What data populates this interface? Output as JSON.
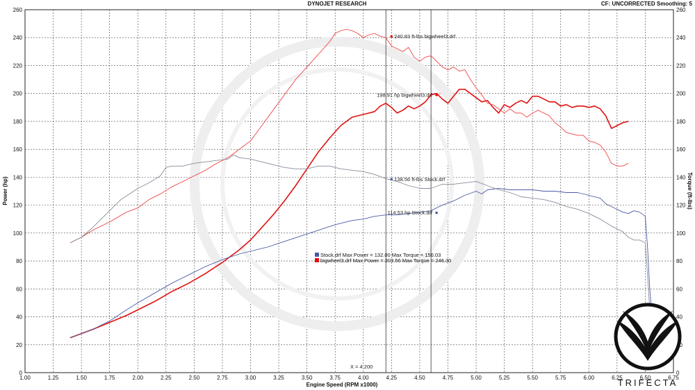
{
  "header": {
    "center": "DYNOJET RESEARCH",
    "right": "CF: UNCORRECTED  Smoothing: 5"
  },
  "brand": {
    "wordmark": "TRIFECTA"
  },
  "chart_data": {
    "type": "line",
    "xlabel": "Engine Speed (RPM x1000)",
    "ylabel_left": "Power (hp)",
    "ylabel_right": "Torque (ft-lbs)",
    "xlim": [
      1.0,
      6.75
    ],
    "ylim": [
      0,
      260
    ],
    "x_ticks": [
      "1.00",
      "1.25",
      "1.50",
      "1.75",
      "2.00",
      "2.25",
      "2.50",
      "2.75",
      "3.00",
      "3.25",
      "3.50",
      "3.75",
      "4.00",
      "4.25",
      "4.50",
      "4.75",
      "5.00",
      "5.25",
      "5.50",
      "5.75",
      "6.00",
      "6.25",
      "6.50",
      "6.75"
    ],
    "y_ticks": [
      "0",
      "20",
      "40",
      "60",
      "80",
      "100",
      "120",
      "140",
      "160",
      "180",
      "200",
      "220",
      "240",
      "260"
    ],
    "grid": true,
    "cursor": {
      "x": 4.2,
      "label": "X = 4.200"
    },
    "cursor2": {
      "x": 4.6
    },
    "series": [
      {
        "name": "bigwheel3.drf",
        "kind": "power",
        "color": "#e01010",
        "width": 1.6,
        "points": [
          [
            1.4,
            25
          ],
          [
            1.5,
            28
          ],
          [
            1.6,
            31
          ],
          [
            1.75,
            36
          ],
          [
            1.9,
            41
          ],
          [
            2.0,
            45
          ],
          [
            2.15,
            51
          ],
          [
            2.3,
            58
          ],
          [
            2.45,
            64
          ],
          [
            2.6,
            71
          ],
          [
            2.75,
            79
          ],
          [
            2.9,
            88
          ],
          [
            3.0,
            95
          ],
          [
            3.1,
            104
          ],
          [
            3.2,
            113
          ],
          [
            3.3,
            123
          ],
          [
            3.4,
            134
          ],
          [
            3.5,
            146
          ],
          [
            3.6,
            158
          ],
          [
            3.7,
            168
          ],
          [
            3.8,
            177
          ],
          [
            3.9,
            183
          ],
          [
            4.0,
            185
          ],
          [
            4.1,
            187
          ],
          [
            4.15,
            191
          ],
          [
            4.2,
            193
          ],
          [
            4.25,
            190
          ],
          [
            4.3,
            186
          ],
          [
            4.35,
            188
          ],
          [
            4.4,
            191
          ],
          [
            4.45,
            189
          ],
          [
            4.5,
            191
          ],
          [
            4.55,
            194
          ],
          [
            4.6,
            199
          ],
          [
            4.65,
            200
          ],
          [
            4.7,
            196
          ],
          [
            4.75,
            193
          ],
          [
            4.8,
            198
          ],
          [
            4.85,
            203
          ],
          [
            4.9,
            203
          ],
          [
            4.95,
            200
          ],
          [
            5.0,
            197
          ],
          [
            5.05,
            194
          ],
          [
            5.1,
            195
          ],
          [
            5.15,
            190
          ],
          [
            5.2,
            186
          ],
          [
            5.25,
            192
          ],
          [
            5.3,
            190
          ],
          [
            5.35,
            193
          ],
          [
            5.4,
            195
          ],
          [
            5.45,
            193
          ],
          [
            5.5,
            198
          ],
          [
            5.55,
            198
          ],
          [
            5.6,
            196
          ],
          [
            5.65,
            194
          ],
          [
            5.7,
            194
          ],
          [
            5.75,
            191
          ],
          [
            5.8,
            192
          ],
          [
            5.85,
            190
          ],
          [
            5.9,
            191
          ],
          [
            5.95,
            191
          ],
          [
            6.0,
            190
          ],
          [
            6.05,
            191
          ],
          [
            6.1,
            189
          ],
          [
            6.15,
            184
          ],
          [
            6.2,
            175
          ],
          [
            6.25,
            177
          ],
          [
            6.3,
            179
          ],
          [
            6.35,
            180
          ]
        ]
      },
      {
        "name": "bigwheel3.drf",
        "kind": "torque",
        "color": "#f05555",
        "width": 1.0,
        "points": [
          [
            1.4,
            93
          ],
          [
            1.5,
            97
          ],
          [
            1.6,
            102
          ],
          [
            1.75,
            108
          ],
          [
            1.9,
            115
          ],
          [
            2.0,
            118
          ],
          [
            2.1,
            124
          ],
          [
            2.2,
            128
          ],
          [
            2.3,
            133
          ],
          [
            2.4,
            137
          ],
          [
            2.5,
            141
          ],
          [
            2.6,
            145
          ],
          [
            2.7,
            150
          ],
          [
            2.8,
            154
          ],
          [
            2.9,
            160
          ],
          [
            3.0,
            166
          ],
          [
            3.1,
            177
          ],
          [
            3.2,
            188
          ],
          [
            3.3,
            199
          ],
          [
            3.4,
            210
          ],
          [
            3.5,
            219
          ],
          [
            3.6,
            228
          ],
          [
            3.7,
            237
          ],
          [
            3.75,
            243
          ],
          [
            3.8,
            245
          ],
          [
            3.85,
            246
          ],
          [
            3.9,
            245
          ],
          [
            3.95,
            243
          ],
          [
            4.0,
            240
          ],
          [
            4.05,
            242
          ],
          [
            4.1,
            243
          ],
          [
            4.15,
            241
          ],
          [
            4.2,
            240
          ],
          [
            4.25,
            234
          ],
          [
            4.3,
            232
          ],
          [
            4.35,
            230
          ],
          [
            4.4,
            233
          ],
          [
            4.45,
            226
          ],
          [
            4.5,
            223
          ],
          [
            4.55,
            226
          ],
          [
            4.6,
            227
          ],
          [
            4.65,
            223
          ],
          [
            4.7,
            219
          ],
          [
            4.75,
            217
          ],
          [
            4.8,
            219
          ],
          [
            4.85,
            216
          ],
          [
            4.9,
            217
          ],
          [
            4.95,
            210
          ],
          [
            5.0,
            204
          ],
          [
            5.05,
            199
          ],
          [
            5.1,
            193
          ],
          [
            5.15,
            192
          ],
          [
            5.2,
            189
          ],
          [
            5.25,
            186
          ],
          [
            5.3,
            189
          ],
          [
            5.35,
            186
          ],
          [
            5.4,
            186
          ],
          [
            5.45,
            183
          ],
          [
            5.5,
            186
          ],
          [
            5.55,
            188
          ],
          [
            5.6,
            186
          ],
          [
            5.65,
            184
          ],
          [
            5.7,
            179
          ],
          [
            5.75,
            176
          ],
          [
            5.8,
            172
          ],
          [
            5.85,
            171
          ],
          [
            5.9,
            170
          ],
          [
            5.95,
            170
          ],
          [
            6.0,
            166
          ],
          [
            6.05,
            165
          ],
          [
            6.1,
            163
          ],
          [
            6.15,
            158
          ],
          [
            6.2,
            150
          ],
          [
            6.25,
            148
          ],
          [
            6.3,
            148
          ],
          [
            6.35,
            150
          ]
        ]
      },
      {
        "name": "Stock.drf",
        "kind": "power",
        "color": "#4a5aa6",
        "width": 0.9,
        "points": [
          [
            1.4,
            25
          ],
          [
            1.5,
            28
          ],
          [
            1.6,
            31
          ],
          [
            1.75,
            37
          ],
          [
            1.9,
            45
          ],
          [
            2.0,
            50
          ],
          [
            2.15,
            57
          ],
          [
            2.3,
            64
          ],
          [
            2.45,
            70
          ],
          [
            2.6,
            76
          ],
          [
            2.75,
            81
          ],
          [
            2.9,
            85
          ],
          [
            3.0,
            87
          ],
          [
            3.15,
            90
          ],
          [
            3.3,
            94
          ],
          [
            3.45,
            98
          ],
          [
            3.6,
            102
          ],
          [
            3.75,
            106
          ],
          [
            3.9,
            109
          ],
          [
            4.0,
            110
          ],
          [
            4.1,
            112
          ],
          [
            4.2,
            113
          ],
          [
            4.3,
            113
          ],
          [
            4.4,
            114
          ],
          [
            4.5,
            115
          ],
          [
            4.6,
            116
          ],
          [
            4.7,
            120
          ],
          [
            4.8,
            123
          ],
          [
            4.9,
            127
          ],
          [
            5.0,
            130
          ],
          [
            5.05,
            128
          ],
          [
            5.1,
            131
          ],
          [
            5.2,
            132
          ],
          [
            5.3,
            131
          ],
          [
            5.4,
            131
          ],
          [
            5.5,
            131
          ],
          [
            5.6,
            130
          ],
          [
            5.7,
            130
          ],
          [
            5.8,
            129
          ],
          [
            5.9,
            129
          ],
          [
            6.0,
            127
          ],
          [
            6.1,
            125
          ],
          [
            6.15,
            121
          ],
          [
            6.2,
            119
          ],
          [
            6.25,
            117
          ],
          [
            6.3,
            115
          ],
          [
            6.35,
            114
          ],
          [
            6.4,
            116
          ],
          [
            6.45,
            115
          ],
          [
            6.5,
            112
          ],
          [
            6.52,
            90
          ],
          [
            6.54,
            60
          ],
          [
            6.56,
            40
          ],
          [
            6.57,
            20
          ]
        ]
      },
      {
        "name": "Stock.drf",
        "kind": "torque",
        "color": "#8a8a9a",
        "width": 0.9,
        "points": [
          [
            1.4,
            93
          ],
          [
            1.5,
            97
          ],
          [
            1.6,
            104
          ],
          [
            1.75,
            116
          ],
          [
            1.85,
            124
          ],
          [
            2.0,
            132
          ],
          [
            2.1,
            136
          ],
          [
            2.2,
            141
          ],
          [
            2.25,
            147
          ],
          [
            2.3,
            148
          ],
          [
            2.4,
            148
          ],
          [
            2.5,
            150
          ],
          [
            2.6,
            151
          ],
          [
            2.7,
            152
          ],
          [
            2.8,
            153
          ],
          [
            2.85,
            156
          ],
          [
            2.9,
            154
          ],
          [
            3.0,
            153
          ],
          [
            3.1,
            151
          ],
          [
            3.2,
            149
          ],
          [
            3.3,
            147
          ],
          [
            3.4,
            146
          ],
          [
            3.5,
            146
          ],
          [
            3.6,
            148
          ],
          [
            3.7,
            148
          ],
          [
            3.8,
            146
          ],
          [
            3.9,
            145
          ],
          [
            4.0,
            144
          ],
          [
            4.1,
            142
          ],
          [
            4.2,
            139
          ],
          [
            4.3,
            137
          ],
          [
            4.4,
            134
          ],
          [
            4.5,
            132
          ],
          [
            4.6,
            132
          ],
          [
            4.7,
            135
          ],
          [
            4.8,
            135
          ],
          [
            4.9,
            136
          ],
          [
            5.0,
            137
          ],
          [
            5.1,
            134
          ],
          [
            5.2,
            131
          ],
          [
            5.3,
            129
          ],
          [
            5.4,
            126
          ],
          [
            5.5,
            125
          ],
          [
            5.6,
            124
          ],
          [
            5.7,
            122
          ],
          [
            5.8,
            119
          ],
          [
            5.9,
            117
          ],
          [
            6.0,
            114
          ],
          [
            6.1,
            110
          ],
          [
            6.2,
            105
          ],
          [
            6.3,
            101
          ],
          [
            6.35,
            97
          ],
          [
            6.4,
            95
          ],
          [
            6.45,
            95
          ],
          [
            6.5,
            93
          ],
          [
            6.52,
            70
          ],
          [
            6.54,
            45
          ],
          [
            6.56,
            28
          ],
          [
            6.57,
            18
          ]
        ]
      }
    ],
    "annotations": [
      {
        "text": "240.83 ft-lbs bigwheel3.drf",
        "x": 4.2,
        "y": 240.83,
        "color": "#e01010"
      },
      {
        "text": "198.91 hp bigwheel3.drf",
        "x": 4.6,
        "y": 198.91,
        "color": "#e01010"
      },
      {
        "text": "138.56 ft-lbs Stock.drf",
        "x": 4.2,
        "y": 138.56,
        "color": "#4a5aa6"
      },
      {
        "text": "114.53 hp Stock.drf",
        "x": 4.6,
        "y": 114.53,
        "color": "#4a5aa6"
      }
    ],
    "legend": [
      {
        "text": "Stock.drf Max Power = 132.00 Max Torque = 156.03",
        "color": "#4a5aa6"
      },
      {
        "text": "bigwheel3.drf Max Power = 203.56 Max Torque = 246.30",
        "color": "#e01010"
      }
    ]
  }
}
